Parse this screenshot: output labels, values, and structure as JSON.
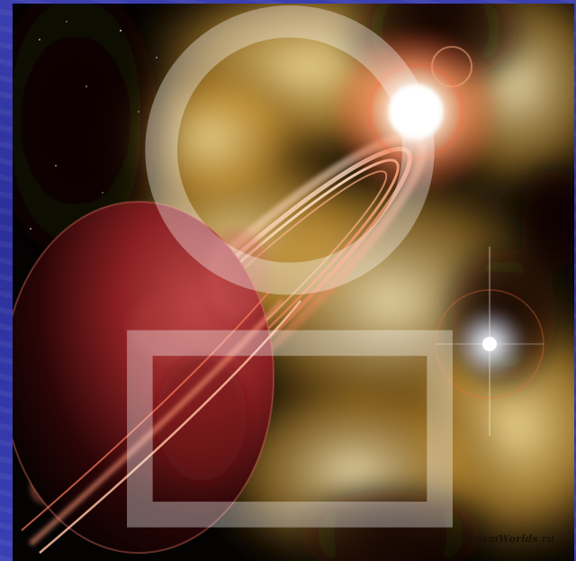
{
  "watermark": {
    "site": "DreamWorlds.ru"
  },
  "colors": {
    "frame": "#2b2f9a",
    "nebula": "#e0b04a",
    "planet": "#8a1c1c",
    "rings": "#ff8a6a",
    "star": "#ffffff"
  },
  "icons": {
    "corner": "logo-mark-icon"
  }
}
